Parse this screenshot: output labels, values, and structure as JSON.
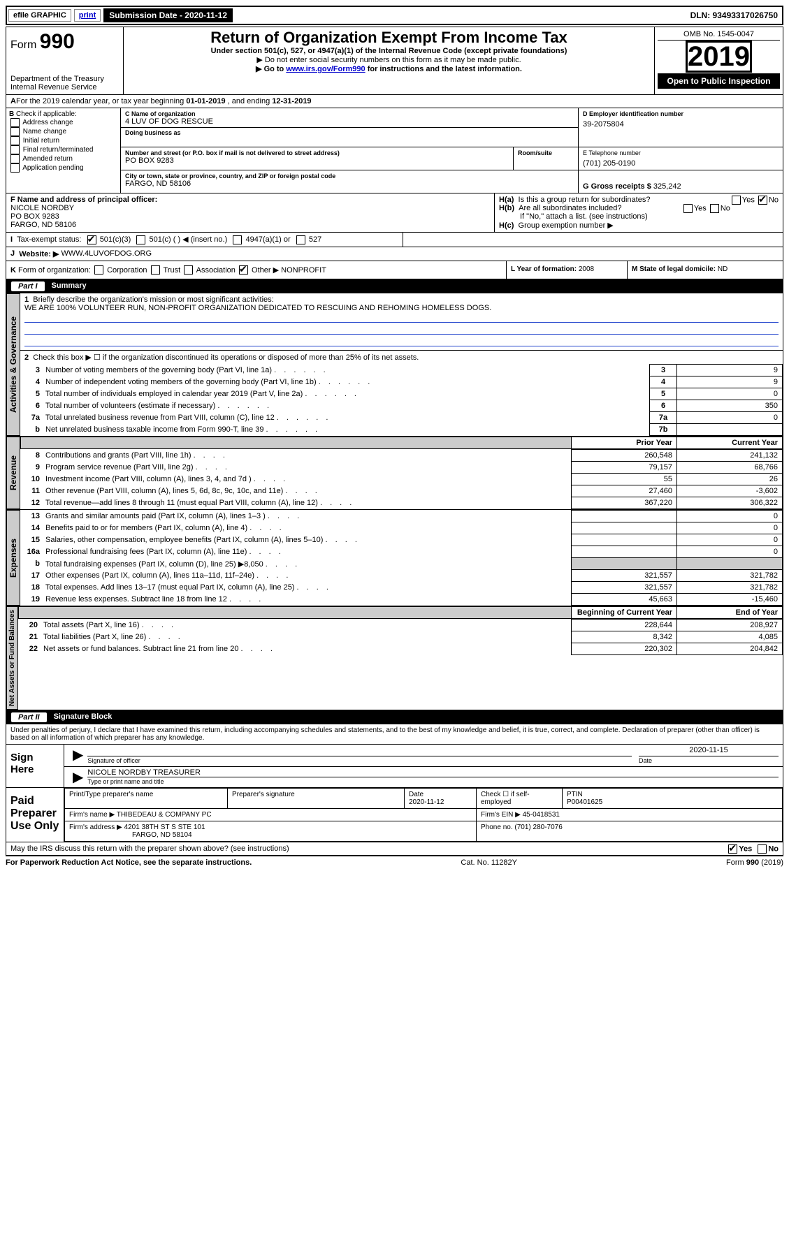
{
  "topbar": {
    "efile": "efile GRAPHIC",
    "print": "print",
    "submission_label": "Submission Date - 2020-11-12",
    "dln": "DLN: 93493317026750"
  },
  "header": {
    "form_label": "Form",
    "form_number": "990",
    "dept1": "Department of the Treasury",
    "dept2": "Internal Revenue Service",
    "title": "Return of Organization Exempt From Income Tax",
    "subtitle": "Under section 501(c), 527, or 4947(a)(1) of the Internal Revenue Code (except private foundations)",
    "note1": "▶ Do not enter social security numbers on this form as it may be made public.",
    "note2_pre": "▶ Go to ",
    "note2_link": "www.irs.gov/Form990",
    "note2_post": " for instructions and the latest information.",
    "omb": "OMB No. 1545-0047",
    "year": "2019",
    "open": "Open to Public Inspection"
  },
  "A": {
    "text_pre": "For the 2019 calendar year, or tax year beginning ",
    "begin": "01-01-2019",
    "mid": " , and ending ",
    "end": "12-31-2019"
  },
  "B": {
    "label": "Check if applicable:",
    "items": [
      "Address change",
      "Name change",
      "Initial return",
      "Final return/terminated",
      "Amended return",
      "Application pending"
    ]
  },
  "C": {
    "name_label": "C Name of organization",
    "name": "4 LUV OF DOG RESCUE",
    "dba_label": "Doing business as",
    "addr_label": "Number and street (or P.O. box if mail is not delivered to street address)",
    "room_label": "Room/suite",
    "addr": "PO BOX 9283",
    "city_label": "City or town, state or province, country, and ZIP or foreign postal code",
    "city": "FARGO, ND  58106"
  },
  "D": {
    "label": "D Employer identification number",
    "value": "39-2075804"
  },
  "E": {
    "label": "E Telephone number",
    "value": "(701) 205-0190"
  },
  "G": {
    "label": "G Gross receipts $",
    "value": "325,242"
  },
  "F": {
    "label": "F  Name and address of principal officer:",
    "name": "NICOLE NORDBY",
    "addr1": "PO BOX 9283",
    "addr2": "FARGO, ND  58106"
  },
  "H": {
    "a": "Is this a group return for subordinates?",
    "b": "Are all subordinates included?",
    "b_note": "If \"No,\" attach a list. (see instructions)",
    "c": "Group exemption number ▶"
  },
  "I": {
    "label": "Tax-exempt status:",
    "opt1": "501(c)(3)",
    "opt2": "501(c) (  ) ◀ (insert no.)",
    "opt3": "4947(a)(1) or",
    "opt4": "527"
  },
  "J": {
    "label": "Website: ▶",
    "value": "WWW.4LUVOFDOG.ORG"
  },
  "K": {
    "label": "Form of organization:",
    "opts": [
      "Corporation",
      "Trust",
      "Association",
      "Other ▶"
    ],
    "other": "NONPROFIT"
  },
  "L": {
    "label": "L Year of formation:",
    "value": "2008"
  },
  "M": {
    "label": "M State of legal domicile:",
    "value": "ND"
  },
  "part1": {
    "label": "Part I",
    "title": "Summary",
    "q1_label": "Briefly describe the organization's mission or most significant activities:",
    "q1_text": "WE ARE 100% VOLUNTEER RUN, NON-PROFIT ORGANIZATION DEDICATED TO RESCUING AND REHOMING HOMELESS DOGS.",
    "q2": "Check this box ▶ ☐  if the organization discontinued its operations or disposed of more than 25% of its net assets.",
    "rows_gov": [
      {
        "n": "3",
        "t": "Number of voting members of the governing body (Part VI, line 1a)",
        "box": "3",
        "v": "9"
      },
      {
        "n": "4",
        "t": "Number of independent voting members of the governing body (Part VI, line 1b)",
        "box": "4",
        "v": "9"
      },
      {
        "n": "5",
        "t": "Total number of individuals employed in calendar year 2019 (Part V, line 2a)",
        "box": "5",
        "v": "0"
      },
      {
        "n": "6",
        "t": "Total number of volunteers (estimate if necessary)",
        "box": "6",
        "v": "350"
      },
      {
        "n": "7a",
        "t": "Total unrelated business revenue from Part VIII, column (C), line 12",
        "box": "7a",
        "v": "0"
      },
      {
        "n": "b",
        "t": "Net unrelated business taxable income from Form 990-T, line 39",
        "box": "7b",
        "v": ""
      }
    ],
    "col_prior": "Prior Year",
    "col_curr": "Current Year",
    "rows_rev": [
      {
        "n": "8",
        "t": "Contributions and grants (Part VIII, line 1h)",
        "p": "260,548",
        "c": "241,132"
      },
      {
        "n": "9",
        "t": "Program service revenue (Part VIII, line 2g)",
        "p": "79,157",
        "c": "68,766"
      },
      {
        "n": "10",
        "t": "Investment income (Part VIII, column (A), lines 3, 4, and 7d )",
        "p": "55",
        "c": "26"
      },
      {
        "n": "11",
        "t": "Other revenue (Part VIII, column (A), lines 5, 6d, 8c, 9c, 10c, and 11e)",
        "p": "27,460",
        "c": "-3,602"
      },
      {
        "n": "12",
        "t": "Total revenue—add lines 8 through 11 (must equal Part VIII, column (A), line 12)",
        "p": "367,220",
        "c": "306,322"
      }
    ],
    "rows_exp": [
      {
        "n": "13",
        "t": "Grants and similar amounts paid (Part IX, column (A), lines 1–3 )",
        "p": "",
        "c": "0"
      },
      {
        "n": "14",
        "t": "Benefits paid to or for members (Part IX, column (A), line 4)",
        "p": "",
        "c": "0"
      },
      {
        "n": "15",
        "t": "Salaries, other compensation, employee benefits (Part IX, column (A), lines 5–10)",
        "p": "",
        "c": "0"
      },
      {
        "n": "16a",
        "t": "Professional fundraising fees (Part IX, column (A), line 11e)",
        "p": "",
        "c": "0"
      },
      {
        "n": "b",
        "t": "Total fundraising expenses (Part IX, column (D), line 25) ▶8,050",
        "p": "shade",
        "c": "shade"
      },
      {
        "n": "17",
        "t": "Other expenses (Part IX, column (A), lines 11a–11d, 11f–24e)",
        "p": "321,557",
        "c": "321,782"
      },
      {
        "n": "18",
        "t": "Total expenses. Add lines 13–17 (must equal Part IX, column (A), line 25)",
        "p": "321,557",
        "c": "321,782"
      },
      {
        "n": "19",
        "t": "Revenue less expenses. Subtract line 18 from line 12",
        "p": "45,663",
        "c": "-15,460"
      }
    ],
    "col_begin": "Beginning of Current Year",
    "col_end": "End of Year",
    "rows_net": [
      {
        "n": "20",
        "t": "Total assets (Part X, line 16)",
        "p": "228,644",
        "c": "208,927"
      },
      {
        "n": "21",
        "t": "Total liabilities (Part X, line 26)",
        "p": "8,342",
        "c": "4,085"
      },
      {
        "n": "22",
        "t": "Net assets or fund balances. Subtract line 21 from line 20",
        "p": "220,302",
        "c": "204,842"
      }
    ],
    "tabs": [
      "Activities & Governance",
      "Revenue",
      "Expenses",
      "Net Assets or Fund Balances"
    ]
  },
  "part2": {
    "label": "Part II",
    "title": "Signature Block",
    "decl": "Under penalties of perjury, I declare that I have examined this return, including accompanying schedules and statements, and to the best of my knowledge and belief, it is true, correct, and complete. Declaration of preparer (other than officer) is based on all information of which preparer has any knowledge.",
    "sign_here": "Sign Here",
    "sig_officer": "Signature of officer",
    "sig_date": "2020-11-15",
    "date_label": "Date",
    "name_title": "NICOLE NORDBY  TREASURER",
    "name_title_label": "Type or print name and title",
    "paid": "Paid Preparer Use Only",
    "prep_name_label": "Print/Type preparer's name",
    "prep_sig_label": "Preparer's signature",
    "prep_date_label": "Date",
    "prep_date": "2020-11-12",
    "check_label": "Check ☐ if self-employed",
    "ptin_label": "PTIN",
    "ptin": "P00401625",
    "firm_name_label": "Firm's name    ▶",
    "firm_name": "THIBEDEAU & COMPANY PC",
    "firm_ein_label": "Firm's EIN ▶",
    "firm_ein": "45-0418531",
    "firm_addr_label": "Firm's address ▶",
    "firm_addr1": "4201 38TH ST S STE 101",
    "firm_addr2": "FARGO, ND  58104",
    "phone_label": "Phone no.",
    "phone": "(701) 280-7076",
    "discuss": "May the IRS discuss this return with the preparer shown above? (see instructions)"
  },
  "footer": {
    "left": "For Paperwork Reduction Act Notice, see the separate instructions.",
    "mid": "Cat. No. 11282Y",
    "right": "Form 990 (2019)"
  }
}
